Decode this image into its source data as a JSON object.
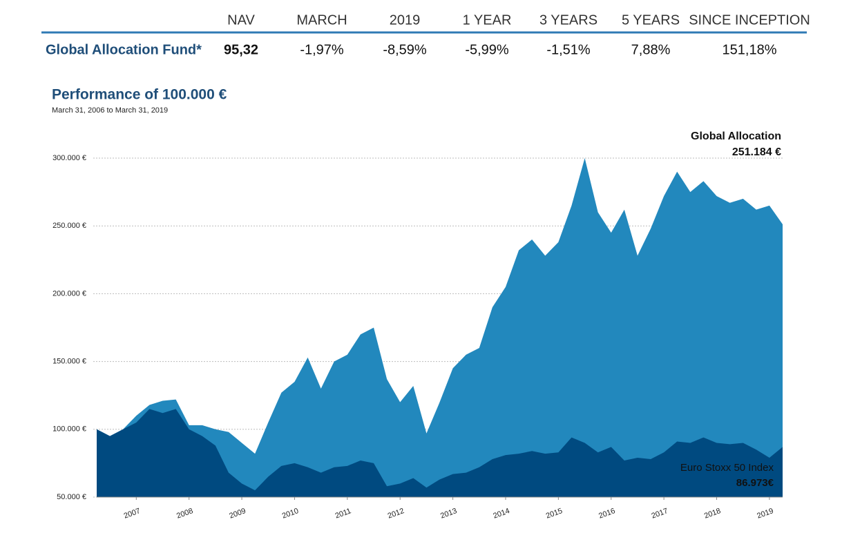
{
  "table": {
    "header": [
      "NAV",
      "MARCH",
      "2019",
      "1 YEAR",
      "3 YEARS",
      "5 YEARS",
      "SINCE INCEPTION"
    ],
    "rows": [
      [
        "Global Allocation Fund*",
        "95,32",
        "-1,97%",
        "-8,59%",
        "-5,99%",
        "-1,51%",
        "7,88%",
        "151,18%"
      ]
    ]
  },
  "chart_data": {
    "type": "area",
    "title": "Performance of 100.000 €",
    "subtitle": "March 31, 2006 to March 31, 2019",
    "x": [
      2006.25,
      2006.5,
      2006.75,
      2007,
      2007.25,
      2007.5,
      2007.75,
      2008,
      2008.25,
      2008.5,
      2008.75,
      2009,
      2009.25,
      2009.5,
      2009.75,
      2010,
      2010.25,
      2010.5,
      2010.75,
      2011,
      2011.25,
      2011.5,
      2011.75,
      2012,
      2012.25,
      2012.5,
      2012.75,
      2013,
      2013.25,
      2013.5,
      2013.75,
      2014,
      2014.25,
      2014.5,
      2014.75,
      2015,
      2015.25,
      2015.5,
      2015.75,
      2016,
      2016.25,
      2016.5,
      2016.75,
      2017,
      2017.25,
      2017.5,
      2017.75,
      2018,
      2018.25,
      2018.5,
      2018.75,
      2019,
      2019.25
    ],
    "series": [
      {
        "name": "Global Allocation",
        "color": "#2288bd",
        "end_label": "251.184 €",
        "values": [
          100000,
          95000,
          100000,
          110000,
          118000,
          121000,
          122000,
          103000,
          103000,
          100000,
          98000,
          90000,
          82000,
          105000,
          127000,
          135000,
          153000,
          130000,
          150000,
          155000,
          170000,
          175000,
          137000,
          120000,
          132000,
          97000,
          120000,
          145000,
          155000,
          160000,
          190000,
          205000,
          232000,
          240000,
          228000,
          238000,
          265000,
          300000,
          260000,
          245000,
          262000,
          228000,
          248000,
          272000,
          290000,
          275000,
          283000,
          272000,
          267000,
          270000,
          262000,
          265000,
          251184
        ]
      },
      {
        "name": "Euro Stoxx 50 Index",
        "color": "#004a80",
        "end_label": "86.973€",
        "values": [
          100000,
          95000,
          100000,
          105000,
          115000,
          112000,
          115000,
          100000,
          95000,
          88000,
          68000,
          60000,
          55000,
          65000,
          73000,
          75000,
          72000,
          68000,
          72000,
          73000,
          77000,
          75000,
          58000,
          60000,
          64000,
          57000,
          63000,
          67000,
          68000,
          72000,
          78000,
          81000,
          82000,
          84000,
          82000,
          83000,
          94000,
          90000,
          83000,
          87000,
          77000,
          79000,
          78000,
          83000,
          91000,
          90000,
          94000,
          90000,
          89000,
          90000,
          85000,
          79000,
          86973
        ]
      }
    ],
    "xlim": [
      2006.25,
      2019.25
    ],
    "xticks": [
      2007,
      2008,
      2009,
      2010,
      2011,
      2012,
      2013,
      2014,
      2015,
      2016,
      2017,
      2018,
      2019
    ],
    "ylim": [
      50000,
      300000
    ],
    "yticks": [
      {
        "value": 50000,
        "label": "50.000 €"
      },
      {
        "value": 100000,
        "label": "100.000 €"
      },
      {
        "value": 150000,
        "label": "150.000 €"
      },
      {
        "value": 200000,
        "label": "200.000 €"
      },
      {
        "value": 250000,
        "label": "250.000 €"
      },
      {
        "value": 300000,
        "label": "300.000 €"
      }
    ],
    "grid": true
  }
}
